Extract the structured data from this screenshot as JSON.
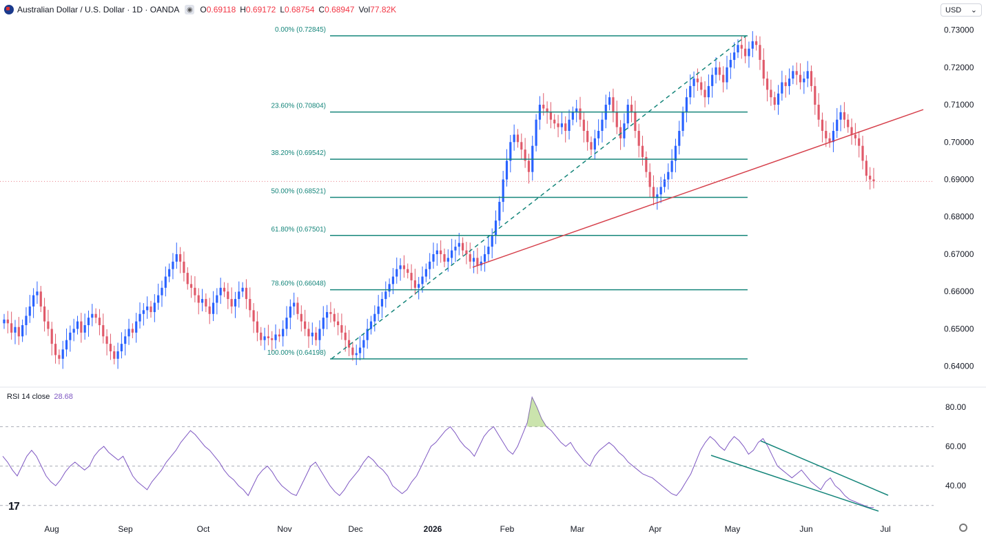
{
  "header": {
    "title": "Australian Dollar / U.S. Dollar · 1D · OANDA",
    "o_label": "O",
    "o_value": "0.69118",
    "h_label": "H",
    "h_value": "0.69172",
    "l_label": "L",
    "l_value": "0.68754",
    "c_label": "C",
    "c_value": "0.68947",
    "vol_label": "Vol",
    "vol_value": "77.82K"
  },
  "currency_selector": {
    "value": "USD",
    "icon": "chevron-down-icon"
  },
  "rsi_header": {
    "label": "RSI 14 close",
    "value": "28.68"
  },
  "logo_text": "17",
  "colors": {
    "up": "#2962ff",
    "down": "#e05a6a",
    "fib": "#14857a",
    "trend": "#d6414c",
    "rsi": "#7e57c2",
    "text": "#131722"
  },
  "chart_data": [
    {
      "type": "candlestick",
      "y_axis_labels": [
        "0.73000",
        "0.72000",
        "0.71000",
        "0.70000",
        "0.69000",
        "0.68000",
        "0.67000",
        "0.66000",
        "0.65000",
        "0.64000"
      ],
      "ylim": [
        0.6357,
        0.7325
      ],
      "x_axis_labels": [
        "Aug",
        "Sep",
        "Oct",
        "Nov",
        "Dec",
        "2026",
        "Feb",
        "Mar",
        "Apr",
        "May",
        "Jun",
        "Jul"
      ],
      "current_price": 0.68947,
      "fib_levels": [
        {
          "label": "0.00% (0.72845)",
          "value": 0.72845
        },
        {
          "label": "23.60% (0.70804)",
          "value": 0.70804
        },
        {
          "label": "38.20% (0.69542)",
          "value": 0.69542
        },
        {
          "label": "50.00% (0.68521)",
          "value": 0.68521
        },
        {
          "label": "61.80% (0.67501)",
          "value": 0.67501
        },
        {
          "label": "78.60% (0.66048)",
          "value": 0.66048
        },
        {
          "label": "100.00% (0.64198)",
          "value": 0.64198
        }
      ],
      "closes": [
        0.6525,
        0.6515,
        0.649,
        0.6505,
        0.648,
        0.651,
        0.6535,
        0.656,
        0.659,
        0.66,
        0.656,
        0.652,
        0.65,
        0.646,
        0.643,
        0.642,
        0.6445,
        0.647,
        0.649,
        0.65,
        0.652,
        0.649,
        0.651,
        0.653,
        0.654,
        0.653,
        0.651,
        0.648,
        0.646,
        0.644,
        0.642,
        0.644,
        0.646,
        0.648,
        0.65,
        0.649,
        0.652,
        0.654,
        0.655,
        0.656,
        0.6545,
        0.657,
        0.659,
        0.661,
        0.664,
        0.666,
        0.668,
        0.67,
        0.668,
        0.665,
        0.662,
        0.661,
        0.659,
        0.657,
        0.658,
        0.656,
        0.654,
        0.657,
        0.659,
        0.661,
        0.66,
        0.658,
        0.656,
        0.658,
        0.66,
        0.661,
        0.658,
        0.655,
        0.652,
        0.649,
        0.647,
        0.648,
        0.6475,
        0.647,
        0.6485,
        0.648,
        0.65,
        0.653,
        0.656,
        0.657,
        0.654,
        0.652,
        0.65,
        0.648,
        0.649,
        0.647,
        0.65,
        0.653,
        0.6545,
        0.654,
        0.652,
        0.651,
        0.649,
        0.647,
        0.645,
        0.643,
        0.6435,
        0.645,
        0.647,
        0.65,
        0.652,
        0.654,
        0.656,
        0.658,
        0.66,
        0.662,
        0.664,
        0.666,
        0.667,
        0.666,
        0.665,
        0.663,
        0.661,
        0.662,
        0.664,
        0.666,
        0.668,
        0.67,
        0.671,
        0.67,
        0.668,
        0.669,
        0.671,
        0.672,
        0.673,
        0.671,
        0.67,
        0.668,
        0.669,
        0.667,
        0.668,
        0.67,
        0.672,
        0.675,
        0.679,
        0.684,
        0.69,
        0.695,
        0.7,
        0.702,
        0.7,
        0.698,
        0.695,
        0.692,
        0.699,
        0.706,
        0.71,
        0.709,
        0.708,
        0.706,
        0.705,
        0.704,
        0.705,
        0.703,
        0.706,
        0.708,
        0.709,
        0.706,
        0.703,
        0.7,
        0.698,
        0.701,
        0.703,
        0.706,
        0.71,
        0.712,
        0.708,
        0.704,
        0.701,
        0.705,
        0.71,
        0.708,
        0.703,
        0.699,
        0.696,
        0.692,
        0.688,
        0.685,
        0.686,
        0.688,
        0.69,
        0.692,
        0.695,
        0.699,
        0.703,
        0.708,
        0.712,
        0.715,
        0.717,
        0.716,
        0.714,
        0.712,
        0.715,
        0.718,
        0.72,
        0.718,
        0.716,
        0.72,
        0.722,
        0.724,
        0.726,
        0.725,
        0.723,
        0.725,
        0.727,
        0.726,
        0.722,
        0.717,
        0.714,
        0.712,
        0.71,
        0.713,
        0.716,
        0.715,
        0.717,
        0.719,
        0.718,
        0.716,
        0.717,
        0.719,
        0.715,
        0.71,
        0.706,
        0.703,
        0.701,
        0.7,
        0.703,
        0.706,
        0.708,
        0.706,
        0.704,
        0.702,
        0.701,
        0.699,
        0.695,
        0.691,
        0.69,
        0.6895
      ],
      "trendline": {
        "from": [
          0.6665
        ],
        "to": [
          0.7087
        ]
      }
    },
    {
      "type": "line",
      "series": [
        {
          "name": "RSI 14 close"
        }
      ],
      "y_axis_labels": [
        "80.00",
        "60.00",
        "40.00"
      ],
      "ylim": [
        25,
        88
      ],
      "bands": [
        70,
        50,
        30
      ],
      "values": [
        55,
        52,
        48,
        45,
        50,
        55,
        58,
        55,
        50,
        45,
        42,
        40,
        43,
        47,
        50,
        52,
        50,
        48,
        50,
        55,
        58,
        60,
        57,
        55,
        53,
        55,
        50,
        45,
        42,
        40,
        38,
        42,
        45,
        48,
        52,
        55,
        58,
        62,
        65,
        68,
        66,
        63,
        60,
        58,
        55,
        52,
        48,
        45,
        43,
        40,
        38,
        35,
        40,
        45,
        48,
        50,
        47,
        43,
        40,
        38,
        36,
        35,
        40,
        45,
        50,
        52,
        48,
        44,
        40,
        37,
        35,
        38,
        42,
        45,
        48,
        52,
        55,
        53,
        50,
        48,
        45,
        40,
        38,
        36,
        38,
        42,
        45,
        50,
        55,
        60,
        62,
        65,
        68,
        70,
        67,
        63,
        60,
        58,
        55,
        60,
        65,
        68,
        70,
        66,
        62,
        58,
        56,
        60,
        66,
        72,
        85,
        80,
        74,
        70,
        68,
        65,
        62,
        60,
        62,
        58,
        55,
        52,
        50,
        55,
        58,
        60,
        62,
        60,
        57,
        55,
        52,
        50,
        48,
        46,
        45,
        44,
        42,
        40,
        38,
        36,
        35,
        38,
        42,
        46,
        52,
        58,
        62,
        65,
        63,
        60,
        58,
        62,
        65,
        63,
        60,
        56,
        58,
        62,
        64,
        60,
        55,
        50,
        48,
        46,
        44,
        46,
        48,
        45,
        42,
        40,
        38,
        42,
        44,
        40,
        38,
        35,
        33,
        32,
        31,
        30,
        29,
        29
      ]
    }
  ]
}
